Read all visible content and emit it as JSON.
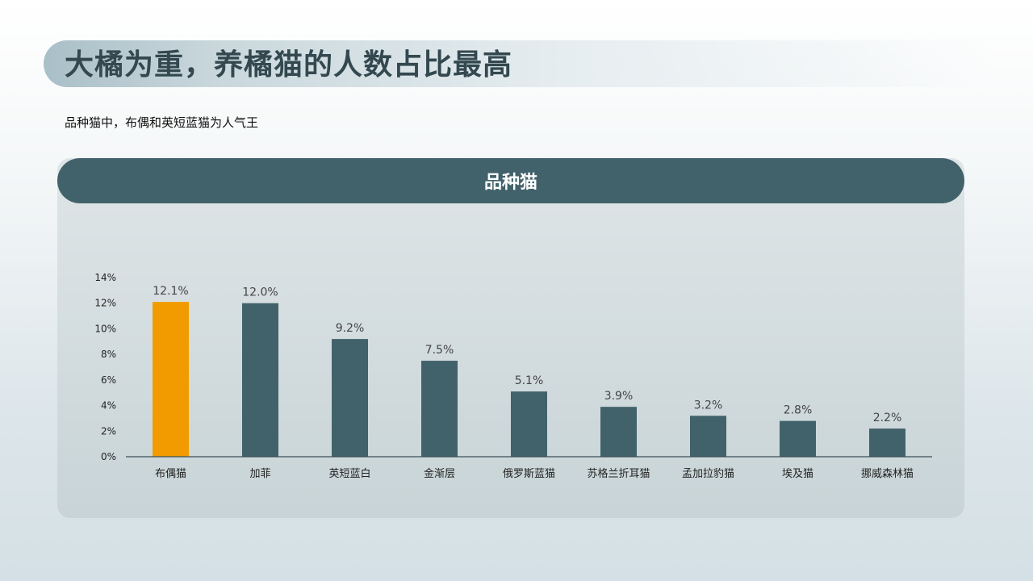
{
  "header": {
    "title": "大橘为重，养橘猫的人数占比最高",
    "subtitle": "品种猫中，布偶和英短蓝猫为人气王"
  },
  "panel": {
    "title": "品种猫"
  },
  "colors": {
    "highlight": "#f29b00",
    "bar": "#42626b",
    "header": "#42626b"
  },
  "chart_data": {
    "type": "bar",
    "title": "",
    "categories": [
      "布偶猫",
      "加菲",
      "英短蓝白",
      "金渐层",
      "俄罗斯蓝猫",
      "苏格兰折耳猫",
      "孟加拉豹猫",
      "埃及猫",
      "挪威森林猫"
    ],
    "values": [
      12.1,
      12.0,
      9.2,
      7.5,
      5.1,
      3.9,
      3.2,
      2.8,
      2.2
    ],
    "data_labels": [
      "12.1%",
      "12.0%",
      "9.2%",
      "7.5%",
      "5.1%",
      "3.9%",
      "3.2%",
      "2.8%",
      "2.2%"
    ],
    "ylim": [
      0,
      14
    ],
    "yticks": [
      0,
      2,
      4,
      6,
      8,
      10,
      12,
      14
    ],
    "ytick_labels": [
      "0%",
      "2%",
      "4%",
      "6%",
      "8%",
      "10%",
      "12%",
      "14%"
    ],
    "highlight_index": 0,
    "grid": false,
    "legend": "none",
    "xlabel": "",
    "ylabel": ""
  }
}
